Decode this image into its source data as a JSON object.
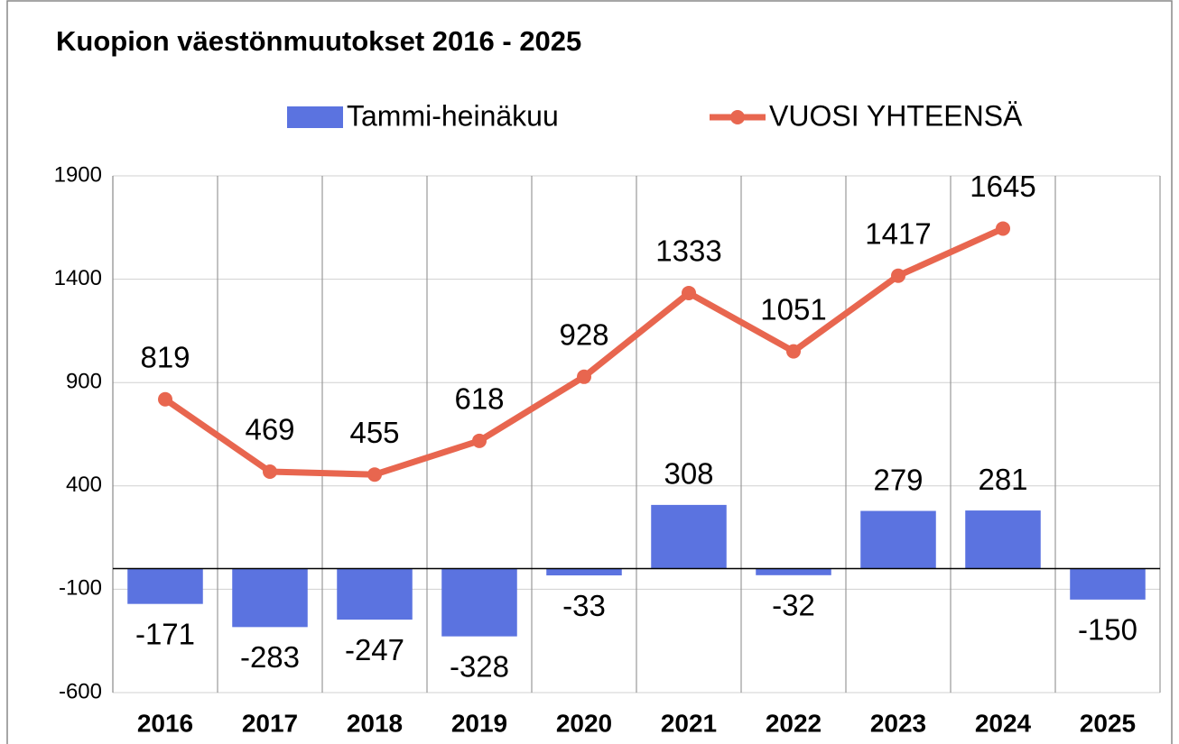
{
  "chart_data": {
    "type": "bar",
    "title": "Kuopion väestönmuutokset 2016 - 2025",
    "categories": [
      "2016",
      "2017",
      "2018",
      "2019",
      "2020",
      "2021",
      "2022",
      "2023",
      "2024",
      "2025"
    ],
    "series": [
      {
        "name": "Tammi-heinäkuu",
        "type": "bar",
        "color": "#5b73e0",
        "values": [
          -171,
          -283,
          -247,
          -328,
          -33,
          308,
          -32,
          279,
          281,
          -150
        ]
      },
      {
        "name": "VUOSI YHTEENSÄ",
        "type": "line",
        "color": "#e8664f",
        "values": [
          819,
          469,
          455,
          618,
          928,
          1333,
          1051,
          1417,
          1645,
          null
        ]
      }
    ],
    "ylim": [
      -600,
      1900
    ],
    "yticks": [
      -600,
      -100,
      400,
      900,
      1400,
      1900
    ],
    "grid": true
  }
}
